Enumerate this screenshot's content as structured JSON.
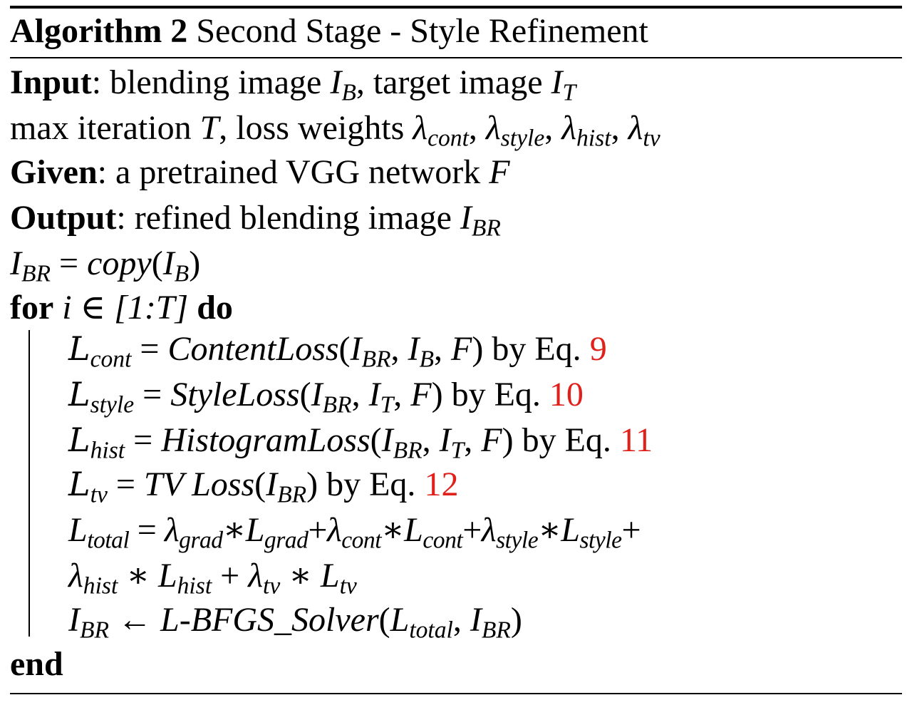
{
  "algorithm": {
    "label": "Algorithm 2",
    "title": "Second Stage - Style Refinement"
  },
  "input": {
    "label": "Input",
    "text1": ": blending image ",
    "text2": ", target image "
  },
  "params": {
    "text1": "max iteration ",
    "text2": ", loss weights "
  },
  "given": {
    "label": "Given",
    "text": ": a pretrained VGG network "
  },
  "output": {
    "label": "Output",
    "text": ": refined blending image "
  },
  "init": {
    "fn": "copy"
  },
  "loop": {
    "for": "for",
    "range": "[1:T]",
    "do": "do",
    "end": "end"
  },
  "steps": {
    "by_eq": " by Eq. ",
    "content": {
      "fn": "ContentLoss",
      "eq": "9"
    },
    "style": {
      "fn": "StyleLoss",
      "eq": "10"
    },
    "hist": {
      "fn": "HistogramLoss",
      "eq": "11"
    },
    "tv": {
      "fn": "TV Loss",
      "eq": "12"
    },
    "solver": {
      "fn": "L-BFGS_Solver"
    }
  },
  "subscripts": {
    "B": "B",
    "T": "T",
    "BR": "BR",
    "cont": "cont",
    "style": "style",
    "hist": "hist",
    "tv": "tv",
    "grad": "grad",
    "total": "total"
  },
  "colors": {
    "reference": "#e0201b",
    "text": "#000000"
  }
}
